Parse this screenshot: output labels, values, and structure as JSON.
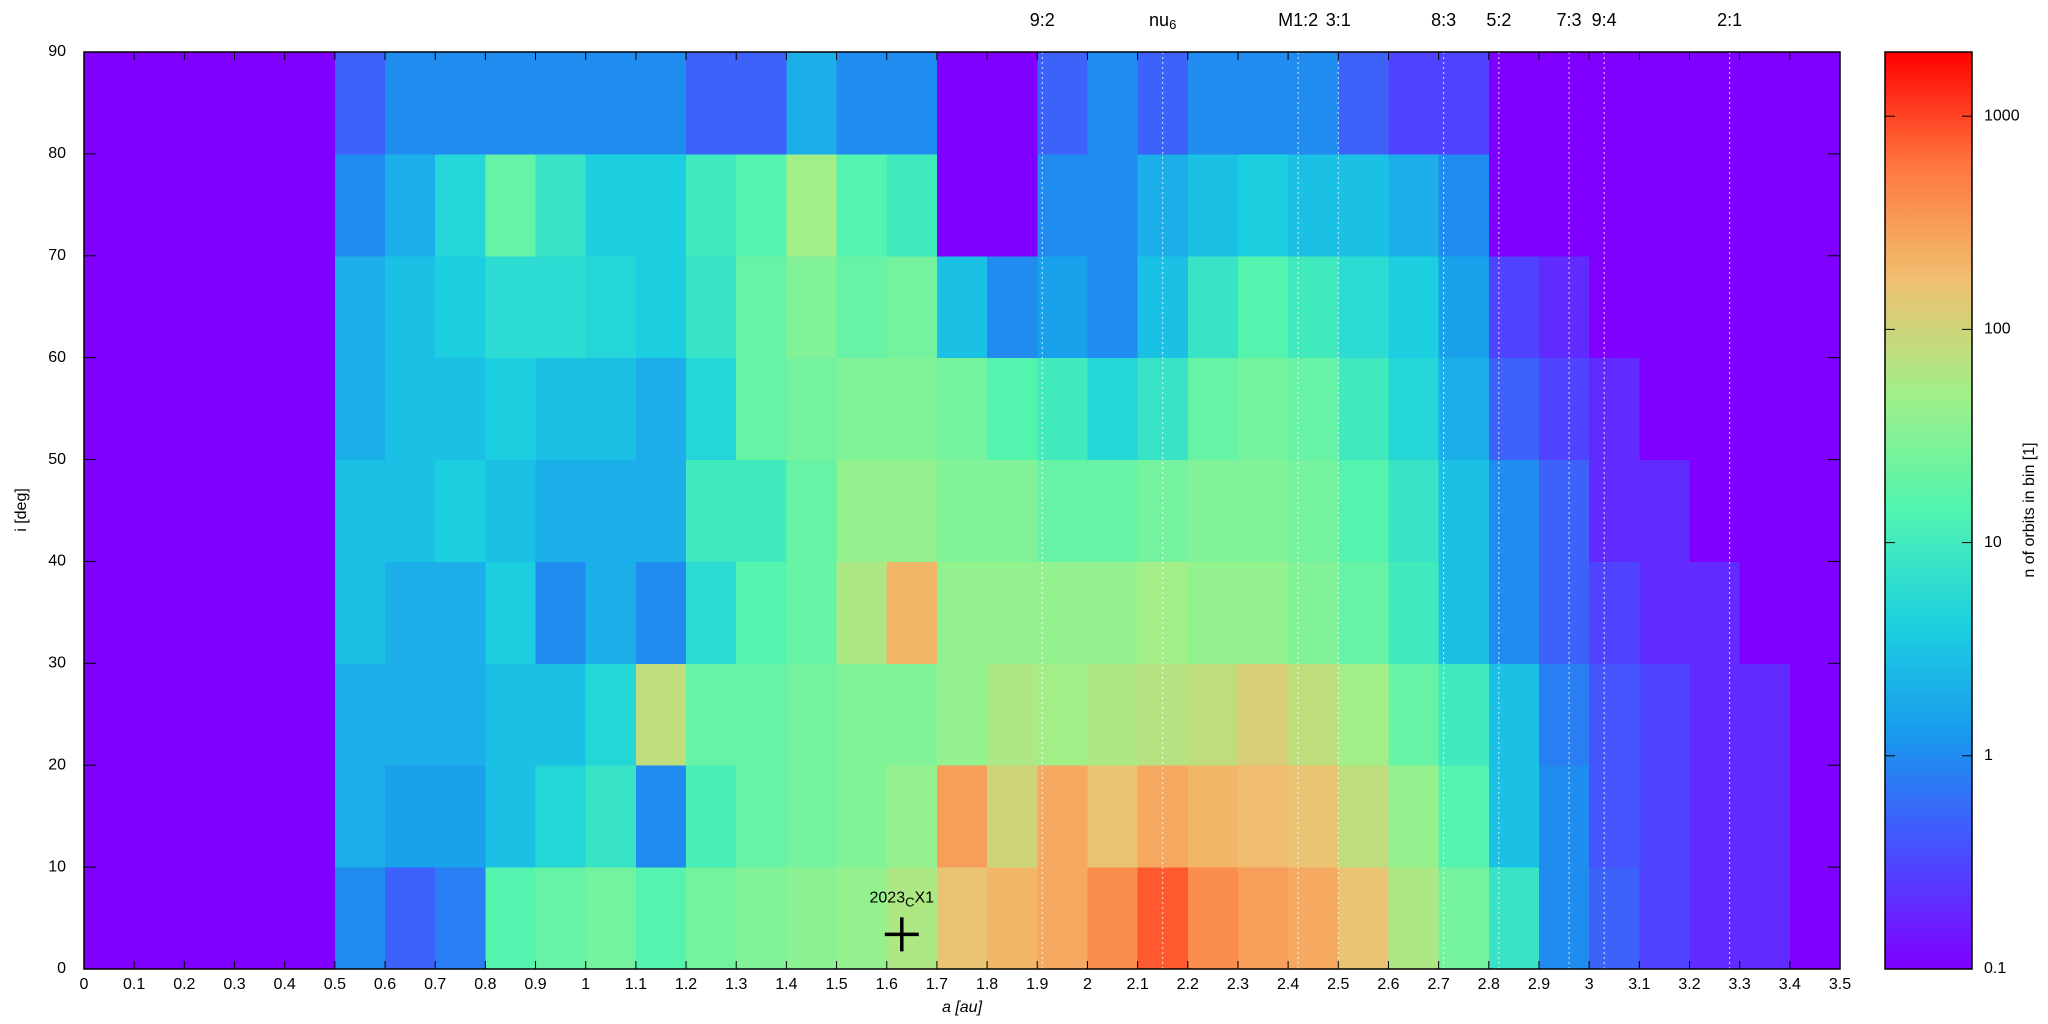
{
  "chart_data": {
    "type": "heatmap",
    "xlabel": "a [au]",
    "ylabel": "i [deg]",
    "xlim": [
      0,
      3.5
    ],
    "ylim": [
      0,
      90
    ],
    "xticks": [
      0,
      0.1,
      0.2,
      0.3,
      0.4,
      0.5,
      0.6,
      0.7,
      0.8,
      0.9,
      1,
      1.1,
      1.2,
      1.3,
      1.4,
      1.5,
      1.6,
      1.7,
      1.8,
      1.9,
      2,
      2.1,
      2.2,
      2.3,
      2.4,
      2.5,
      2.6,
      2.7,
      2.8,
      2.9,
      3,
      3.1,
      3.2,
      3.3,
      3.4,
      3.5
    ],
    "yticks": [
      0,
      10,
      20,
      30,
      40,
      50,
      60,
      70,
      80,
      90
    ],
    "x_edges": [
      0,
      0.1,
      0.2,
      0.3,
      0.4,
      0.5,
      0.6,
      0.7,
      0.8,
      0.9,
      1,
      1.1,
      1.2,
      1.3,
      1.4,
      1.5,
      1.6,
      1.7,
      1.8,
      1.9,
      2,
      2.1,
      2.2,
      2.3,
      2.4,
      2.5,
      2.6,
      2.7,
      2.8,
      2.9,
      3,
      3.1,
      3.2,
      3.3,
      3.4,
      3.5
    ],
    "y_edges": [
      0,
      10,
      20,
      30,
      40,
      50,
      60,
      70,
      80,
      90
    ],
    "z": [
      [
        0,
        0,
        0,
        0,
        0,
        1,
        0.5,
        0.8,
        15,
        20,
        25,
        15,
        25,
        30,
        35,
        40,
        60,
        150,
        200,
        250,
        400,
        800,
        400,
        300,
        250,
        150,
        60,
        25,
        8,
        1,
        0.5,
        0.3,
        0.2,
        0.2,
        0
      ],
      [
        0,
        0,
        0,
        0,
        0,
        2,
        1.5,
        1.5,
        3,
        5,
        8,
        1,
        12,
        20,
        25,
        30,
        40,
        300,
        100,
        250,
        150,
        250,
        200,
        180,
        150,
        80,
        40,
        15,
        3,
        1,
        0.4,
        0.3,
        0.2,
        0.2,
        0
      ],
      [
        0,
        0,
        0,
        0,
        0,
        2,
        2,
        2,
        3,
        3,
        5,
        80,
        20,
        20,
        25,
        30,
        30,
        40,
        60,
        50,
        60,
        70,
        80,
        120,
        80,
        50,
        20,
        10,
        3,
        0.8,
        0.4,
        0.3,
        0.2,
        0.2,
        0
      ],
      [
        0,
        0,
        0,
        0,
        0,
        3,
        2,
        2,
        4,
        1,
        2,
        1,
        6,
        15,
        20,
        60,
        200,
        40,
        40,
        40,
        40,
        50,
        40,
        40,
        30,
        20,
        10,
        3,
        1,
        0.5,
        0.3,
        0.2,
        0.2,
        0.1,
        0
      ],
      [
        0,
        0,
        0,
        0,
        0,
        3,
        3,
        4,
        3,
        2,
        2,
        2,
        10,
        10,
        20,
        40,
        40,
        30,
        30,
        20,
        20,
        25,
        30,
        30,
        25,
        15,
        8,
        3,
        1,
        0.5,
        0.2,
        0.2,
        0.1,
        0.1,
        0
      ],
      [
        0,
        0,
        0,
        0,
        0,
        2,
        3,
        3,
        4,
        3,
        3,
        2,
        5,
        20,
        25,
        30,
        30,
        25,
        15,
        10,
        5,
        8,
        20,
        25,
        20,
        10,
        5,
        2,
        0.5,
        0.3,
        0.2,
        0.1,
        0.1,
        0,
        0
      ],
      [
        0,
        0,
        0,
        0,
        0,
        2,
        3,
        4,
        6,
        6,
        5,
        4,
        8,
        20,
        30,
        20,
        25,
        3,
        1,
        1.5,
        1,
        3,
        8,
        15,
        10,
        6,
        4,
        1.5,
        0.3,
        0.2,
        0,
        0.1,
        0,
        0,
        0
      ],
      [
        0,
        0,
        0,
        0,
        0,
        1,
        2,
        5,
        20,
        8,
        4,
        4,
        10,
        15,
        50,
        15,
        10,
        0,
        0,
        1,
        1,
        2,
        3,
        4,
        3,
        3,
        2,
        1,
        0,
        0,
        0,
        0,
        0,
        0,
        0
      ],
      [
        0,
        0,
        0,
        0,
        0,
        0.5,
        1,
        1,
        1,
        1,
        1,
        1,
        0.5,
        0.5,
        2,
        1,
        1,
        0,
        0,
        0.5,
        1,
        0.5,
        1,
        1,
        1,
        0.5,
        0.3,
        0.3,
        0,
        0,
        0,
        0,
        0,
        0,
        0
      ]
    ],
    "colorbar": {
      "label": "n of orbits in bin [1]",
      "scale": "log",
      "lim": [
        0.1,
        2000
      ],
      "ticks": [
        0.1,
        1,
        10,
        100,
        1000
      ],
      "colors": [
        "#7f00ff",
        "#4a4cff",
        "#1a96ee",
        "#1cd0e0",
        "#50f4b0",
        "#a0f088",
        "#f0c070",
        "#ff7840",
        "#ff0000"
      ]
    },
    "resonances": [
      {
        "label": "9:2",
        "a": 1.91
      },
      {
        "label": "nu",
        "sub": "6",
        "a": 2.15
      },
      {
        "label": "M1:2",
        "a": 2.42
      },
      {
        "label": "3:1",
        "a": 2.5
      },
      {
        "label": "8:3",
        "a": 2.71
      },
      {
        "label": "5:2",
        "a": 2.82
      },
      {
        "label": "7:3",
        "a": 2.96
      },
      {
        "label": "9:4",
        "a": 3.03
      },
      {
        "label": "2:1",
        "a": 3.28
      }
    ],
    "annotation": {
      "parts": [
        "2023",
        "C",
        "X1"
      ],
      "x": 1.63,
      "y": 3.4
    }
  }
}
